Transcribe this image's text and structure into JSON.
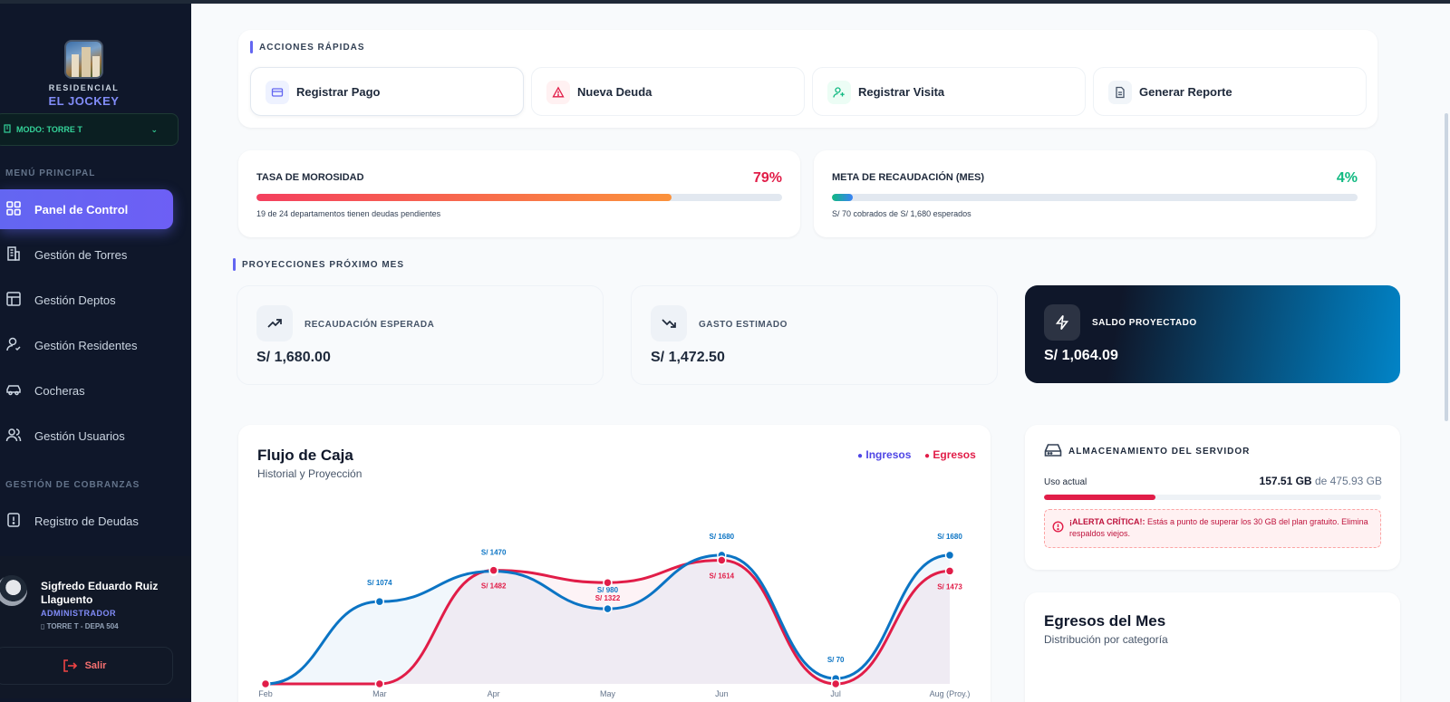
{
  "brand": {
    "line1": "RESIDENCIAL",
    "line2": "EL JOCKEY"
  },
  "mode_label": "MODO: TORRE T",
  "menu": {
    "main_label": "MENÚ PRINCIPAL",
    "items": [
      {
        "label": "Panel de Control",
        "icon": "grid-icon"
      },
      {
        "label": "Gestión de Torres",
        "icon": "building-icon"
      },
      {
        "label": "Gestión Deptos",
        "icon": "layout-icon"
      },
      {
        "label": "Gestión Residentes",
        "icon": "user-icon"
      },
      {
        "label": "Cocheras",
        "icon": "car-icon"
      },
      {
        "label": "Gestión Usuarios",
        "icon": "users-icon"
      }
    ],
    "billing_label": "GESTIÓN DE COBRANZAS",
    "billing_items": [
      {
        "label": "Registro de Deudas",
        "icon": "alert-file-icon"
      }
    ]
  },
  "user": {
    "name": "Sigfredo Eduardo Ruiz Llaguento",
    "role": "ADMINISTRADOR",
    "dept": "TORRE T - DEPA 504",
    "logout": "Salir"
  },
  "quick_actions": {
    "title": "ACCIONES RÁPIDAS",
    "items": [
      {
        "label": "Registrar Pago",
        "icon": "card-icon"
      },
      {
        "label": "Nueva Deuda",
        "icon": "warning-icon"
      },
      {
        "label": "Registrar Visita",
        "icon": "user-plus-icon"
      },
      {
        "label": "Generar Reporte",
        "icon": "document-icon"
      }
    ]
  },
  "kpis": {
    "delinquency": {
      "label": "TASA DE MOROSIDAD",
      "pct": "79%",
      "value": 0.79,
      "sub": "19 de 24 departamentos tienen deudas pendientes",
      "color": "#e11d48"
    },
    "goal": {
      "label": "META DE RECAUDACIÓN (MES)",
      "pct": "4%",
      "value": 0.04,
      "sub": "S/ 70 cobrados de S/ 1,680 esperados",
      "color": "#10b981"
    }
  },
  "projections": {
    "title": "PROYECCIONES PRÓXIMO MES",
    "expected": {
      "label": "RECAUDACIÓN ESPERADA",
      "value": "S/ 1,680.00"
    },
    "expense": {
      "label": "GASTO ESTIMADO",
      "value": "S/ 1,472.50"
    },
    "balance": {
      "label": "SALDO PROYECTADO",
      "value": "S/ 1,064.09"
    }
  },
  "cashflow": {
    "title": "Flujo de Caja",
    "subtitle": "Historial y Proyección",
    "legend_in": "Ingresos",
    "legend_out": "Egresos"
  },
  "chart_data": {
    "type": "line",
    "categories": [
      "Feb",
      "Mar",
      "Apr",
      "May",
      "Jun",
      "Jul",
      "Aug (Proy.)"
    ],
    "series": [
      {
        "name": "Ingresos",
        "values": [
          0,
          1074,
          1470,
          980,
          1680,
          70,
          1680
        ],
        "labels": [
          "",
          "S/ 1074",
          "S/ 1470",
          "S/ 980",
          "S/ 1680",
          "S/ 70",
          "S/ 1680"
        ],
        "color": "#0b74c4"
      },
      {
        "name": "Egresos",
        "values": [
          0,
          0,
          1482,
          1322,
          1614,
          0,
          1473
        ],
        "labels": [
          "",
          "",
          "S/ 1482",
          "S/ 1322",
          "S/ 1614",
          "",
          "S/ 1473"
        ],
        "color": "#e11d48"
      }
    ],
    "ylim": [
      0,
      1750
    ]
  },
  "storage": {
    "title": "ALMACENAMIENTO DEL SERVIDOR",
    "usage_label": "Uso actual",
    "used": "157.51 GB",
    "total_text": "de 475.93 GB",
    "used_fraction": 0.331,
    "alert_strong": "¡ALERTA CRÍTICA!:",
    "alert_text": "Estás a punto de superar los 30 GB del plan gratuito. Elimina respaldos viejos."
  },
  "expenses_month": {
    "title": "Egresos del Mes",
    "subtitle": "Distribución por categoría"
  }
}
